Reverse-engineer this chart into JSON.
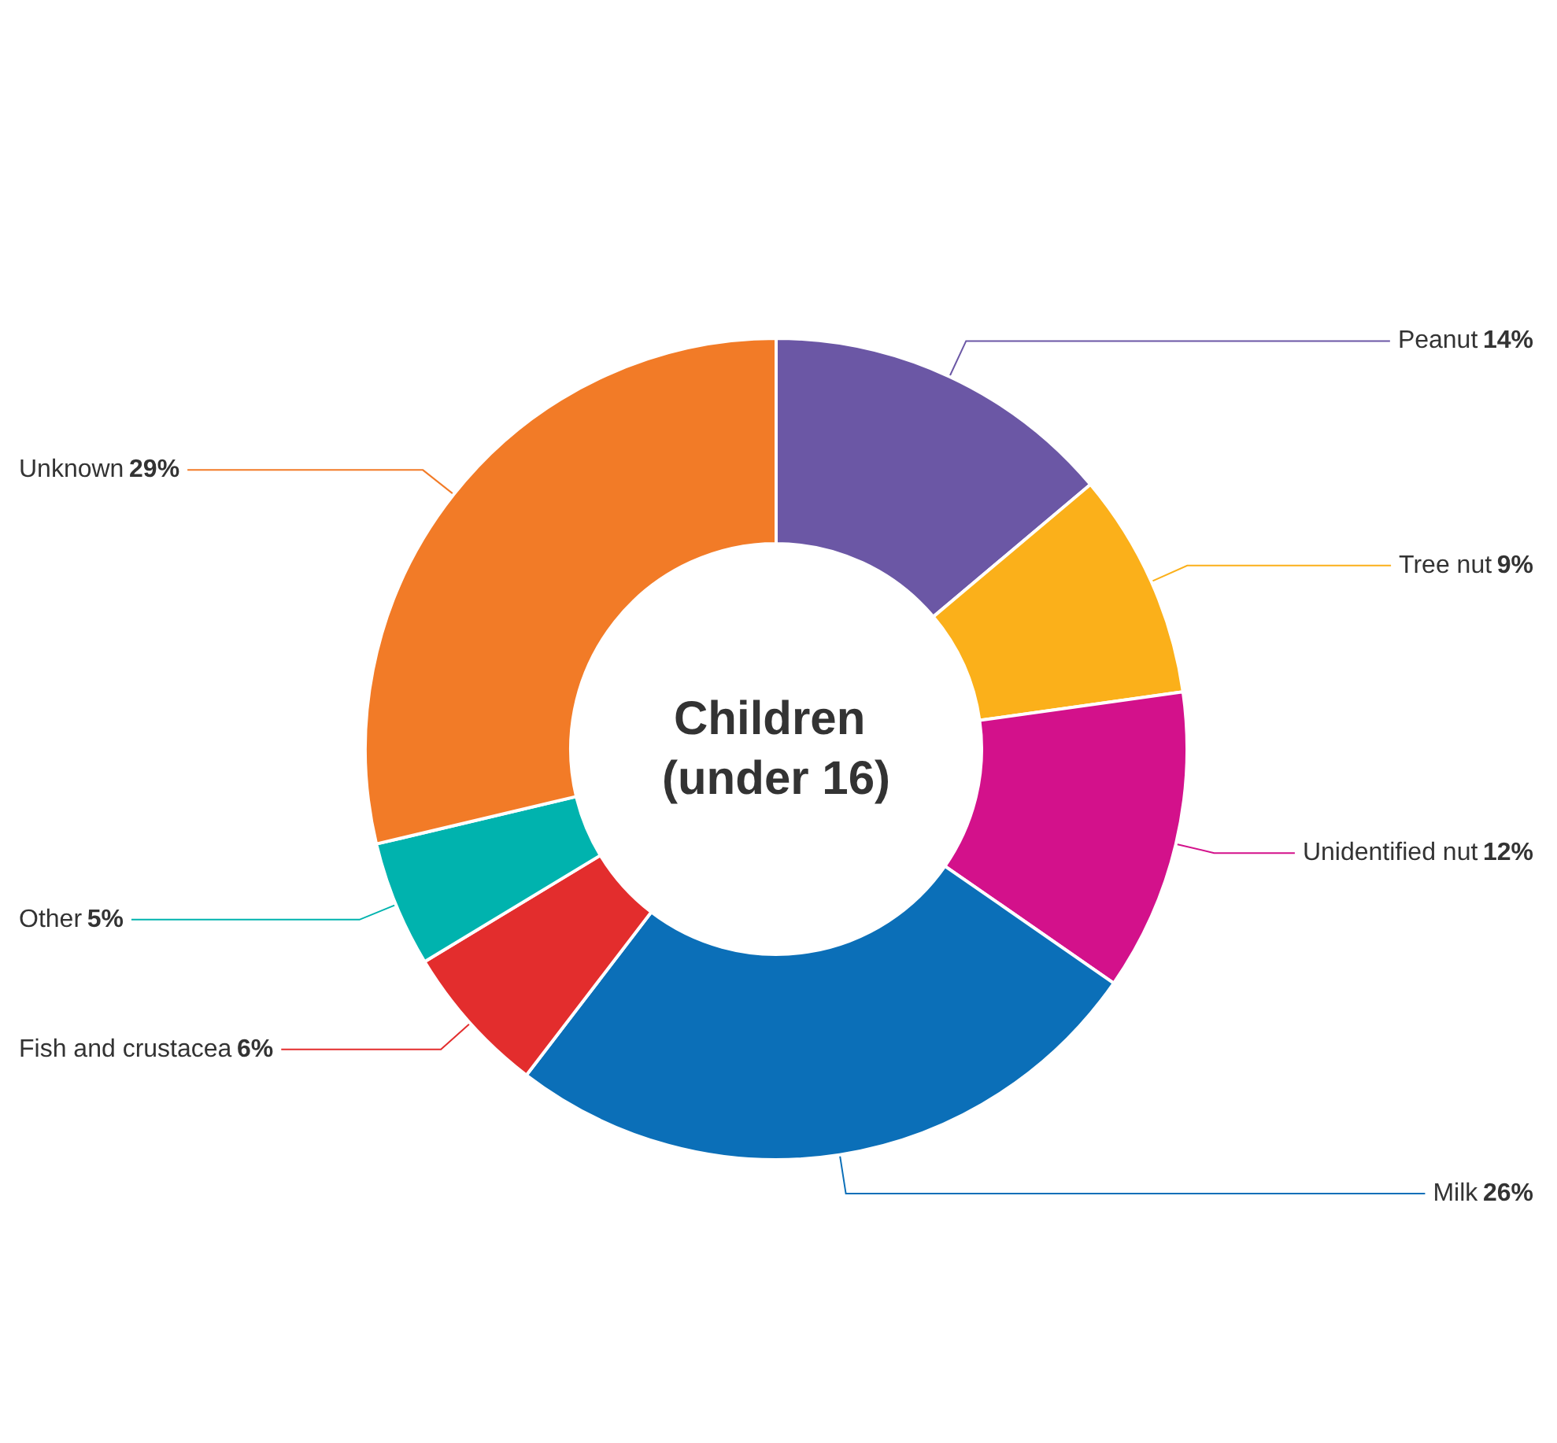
{
  "chart_data": {
    "type": "donut",
    "title": "Children (under 16)",
    "categories": [
      "Peanut",
      "Tree nut",
      "Unidentified nut",
      "Milk",
      "Fish and crustacea",
      "Other",
      "Unknown"
    ],
    "values": [
      14,
      9,
      12,
      26,
      6,
      5,
      29
    ],
    "value_labels": [
      "14%",
      "9%",
      "12%",
      "26%",
      "6%",
      "5%",
      "29%"
    ],
    "colors": [
      "#6b57a5",
      "#fbb01a",
      "#d3118b",
      "#0b6fb8",
      "#e32d2d",
      "#00b3ae",
      "#f27b27"
    ],
    "legend": false
  }
}
